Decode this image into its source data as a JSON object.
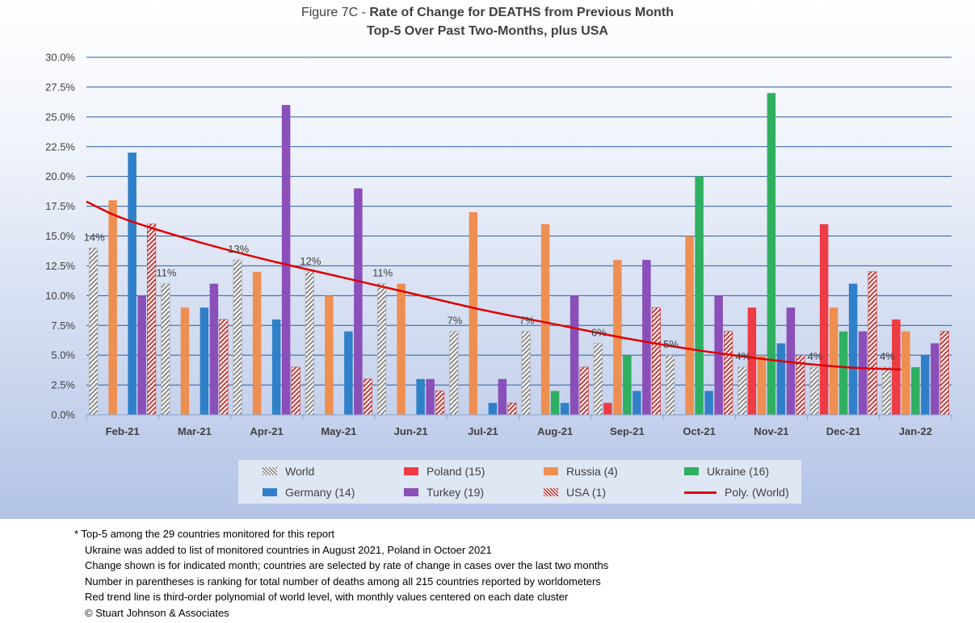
{
  "chart_data": {
    "type": "bar",
    "title_prefix": "Figure 7C - ",
    "title_bold": "Rate of Change for DEATHS from Previous Month",
    "subtitle": "Top-5 Over Past Two-Months, plus USA",
    "categories": [
      "Feb-21",
      "Mar-21",
      "Apr-21",
      "May-21",
      "Jun-21",
      "Jul-21",
      "Aug-21",
      "Sep-21",
      "Oct-21",
      "Nov-21",
      "Dec-21",
      "Jan-22"
    ],
    "ylim": [
      0,
      30
    ],
    "yticks": [
      "0.0%",
      "2.5%",
      "5.0%",
      "7.5%",
      "10.0%",
      "12.5%",
      "15.0%",
      "17.5%",
      "20.0%",
      "22.5%",
      "25.0%",
      "27.5%",
      "30.0%"
    ],
    "grid": true,
    "legend_position": "bottom",
    "series": [
      {
        "name": "World",
        "color": "#a6a6a6",
        "pattern": "hatch-gray",
        "values": [
          14,
          11,
          13,
          12,
          11,
          7,
          7,
          6,
          5,
          4,
          4,
          4
        ],
        "labels": [
          "14%",
          "11%",
          "13%",
          "12%",
          "11%",
          "7%",
          "7%",
          "6%",
          "5%",
          "4%",
          "4%",
          "4%"
        ]
      },
      {
        "name": "Poland (15)",
        "color": "#ee3b44",
        "values": [
          null,
          null,
          null,
          null,
          null,
          null,
          null,
          1,
          null,
          9,
          16,
          8
        ]
      },
      {
        "name": "Russia (4)",
        "color": "#ee8f52",
        "values": [
          18,
          9,
          12,
          10,
          11,
          17,
          16,
          13,
          15,
          5,
          9,
          7
        ]
      },
      {
        "name": "Ukraine (16)",
        "color": "#2fb060",
        "values": [
          null,
          null,
          null,
          null,
          null,
          null,
          2,
          5,
          20,
          27,
          7,
          4
        ]
      },
      {
        "name": "Germany (14)",
        "color": "#2f80c8",
        "values": [
          22,
          9,
          8,
          7,
          3,
          1,
          1,
          2,
          2,
          6,
          11,
          5
        ]
      },
      {
        "name": "Turkey (19)",
        "color": "#8a4fb8",
        "values": [
          10,
          11,
          26,
          19,
          3,
          3,
          10,
          13,
          10,
          9,
          7,
          6
        ]
      },
      {
        "name": "USA (1)",
        "color": "#c53a3a",
        "pattern": "hatch-red",
        "values": [
          16,
          8,
          4,
          3,
          2,
          1,
          4,
          9,
          7,
          5,
          12,
          7
        ]
      }
    ],
    "trend": {
      "name": "Poly. (World)",
      "color": "#e00000",
      "x": [
        -0.5,
        0,
        1,
        2,
        3,
        4,
        5,
        6,
        7,
        8,
        9,
        10,
        10.8
      ],
      "values": [
        17.9,
        16.5,
        14.6,
        13.0,
        11.6,
        10.2,
        8.8,
        7.6,
        6.4,
        5.4,
        4.6,
        4.0,
        3.8
      ]
    }
  },
  "notes": [
    "* Top-5 among the 29 countries monitored for this report",
    "Ukraine was added to list of monitored countries in August 2021, Poland in Octoer 2021",
    "Change shown is for indicated month; countries are selected by rate of change in cases over the last two months",
    "Number in parentheses is ranking for total number of deaths among all 215 countries reported by worldometers",
    "Red trend line is third-order polynomial of world level, with monthly values centered on each date cluster",
    "© Stuart Johnson & Associates"
  ]
}
